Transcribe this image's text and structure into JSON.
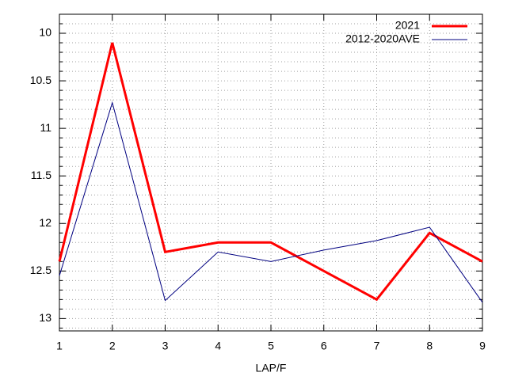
{
  "chart_data": {
    "type": "line",
    "x_label": "LAP/F",
    "x": [
      1,
      2,
      3,
      4,
      5,
      6,
      7,
      8,
      9
    ],
    "series": [
      {
        "name": "2021",
        "color": "#ff0000",
        "width": 3,
        "values": [
          12.4,
          10.1,
          12.3,
          12.2,
          12.2,
          12.5,
          12.8,
          12.1,
          12.4
        ]
      },
      {
        "name": "2012-2020AVE",
        "color": "#000080",
        "width": 1,
        "values": [
          12.55,
          10.73,
          12.81,
          12.3,
          12.4,
          12.28,
          12.18,
          12.04,
          12.83
        ]
      }
    ],
    "xlim": [
      1,
      9
    ],
    "xticks": [
      1,
      2,
      3,
      4,
      5,
      6,
      7,
      8,
      9
    ],
    "ylim": [
      13.13,
      9.8
    ],
    "y_reversed": true,
    "yticks": [
      10,
      10.5,
      11,
      11.5,
      12,
      12.5,
      13
    ],
    "yminor": 5,
    "grid": true,
    "legend": "top-right"
  }
}
